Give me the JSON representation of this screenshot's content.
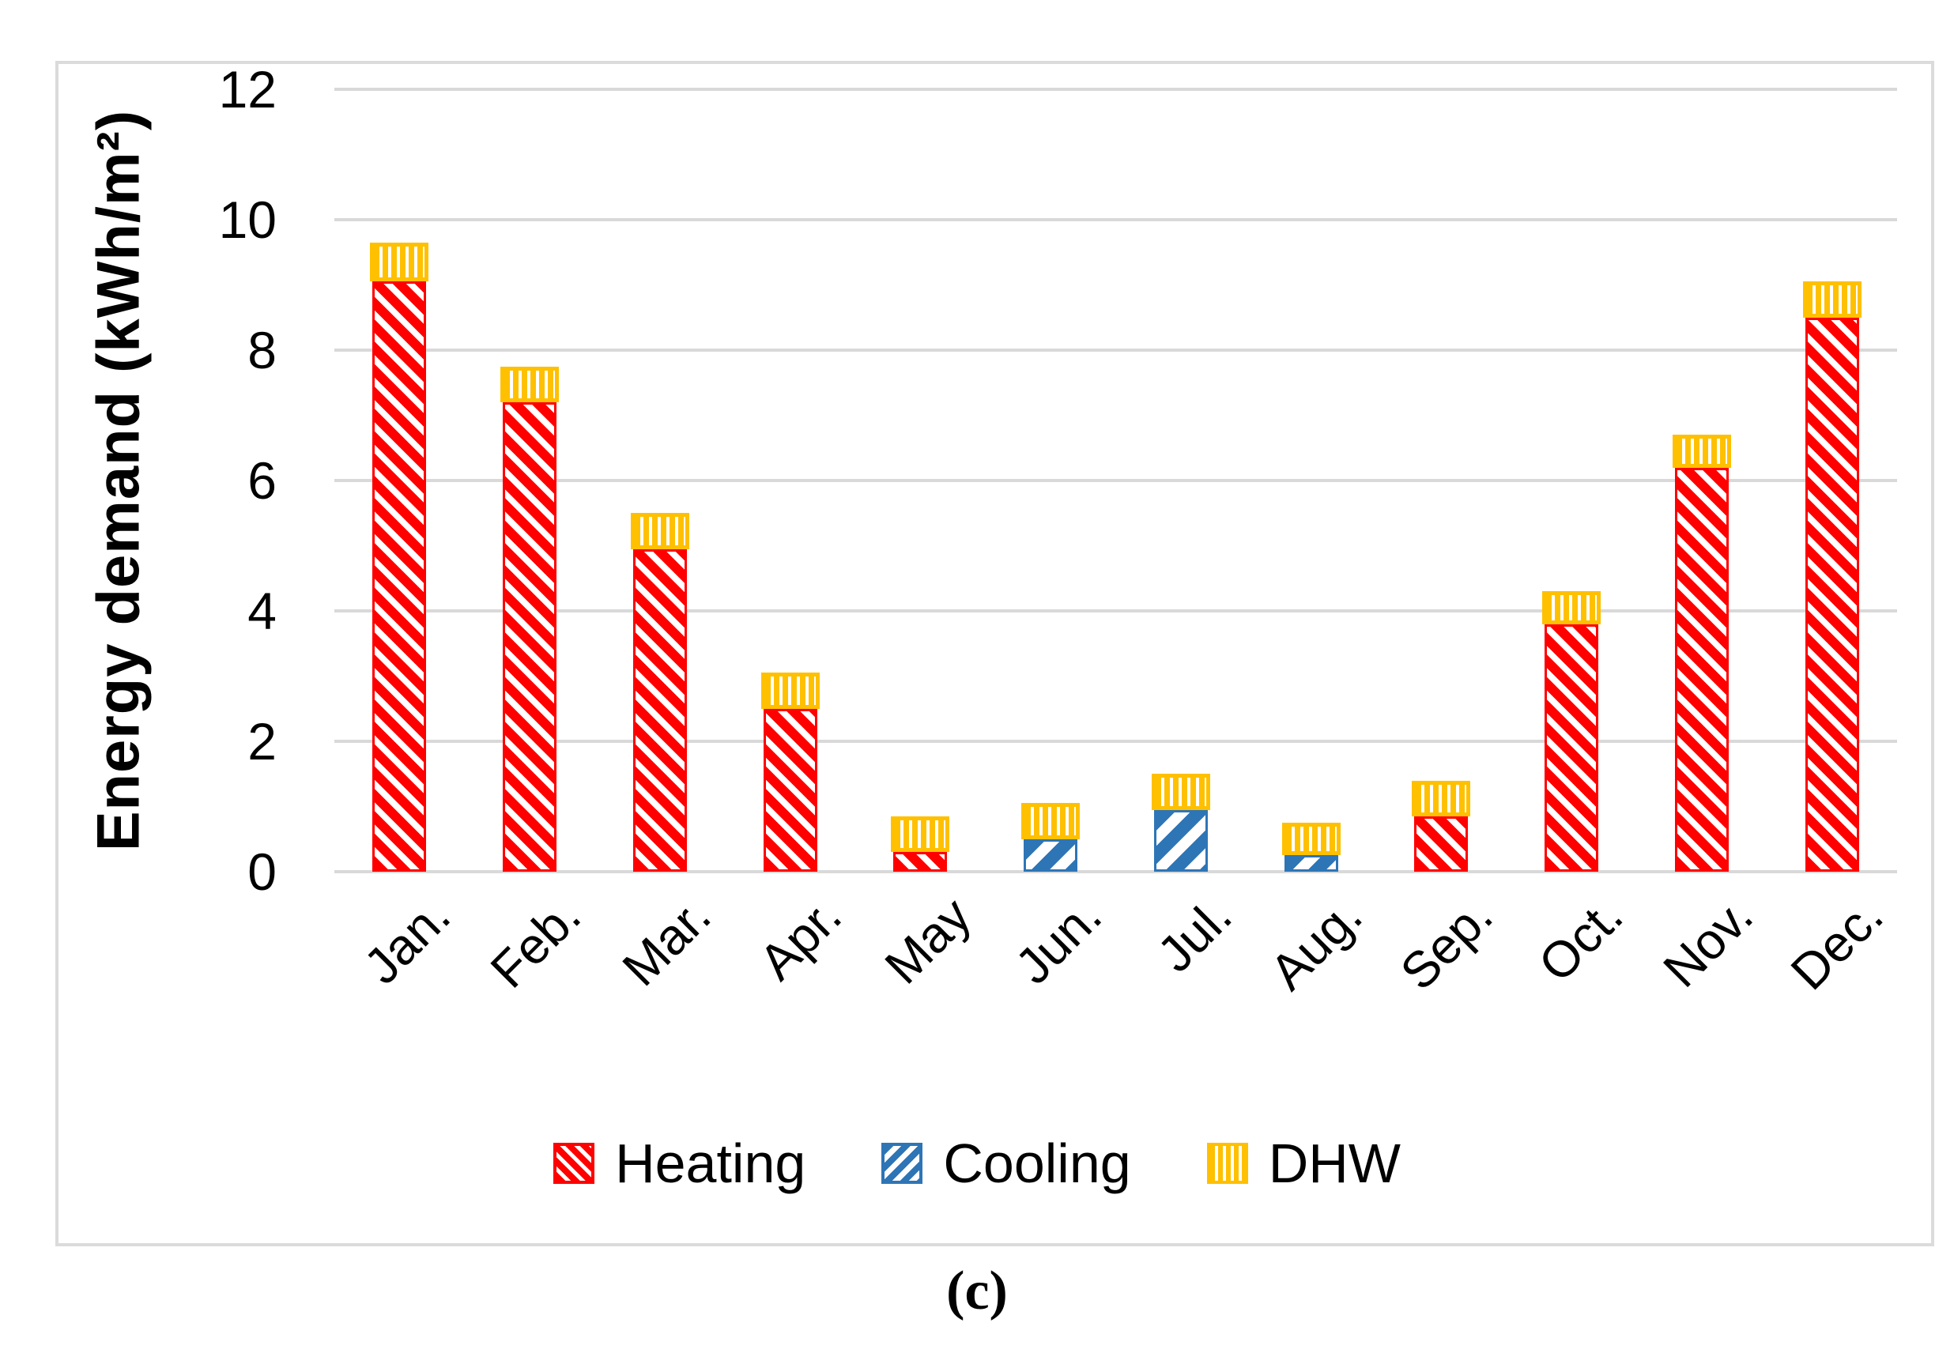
{
  "figure": {
    "caption": "(c)"
  },
  "chart_data": {
    "type": "bar",
    "stacked": true,
    "title": "",
    "xlabel": "",
    "ylabel": "Energy demand (kWh/m²)",
    "ylim": [
      0,
      12
    ],
    "yticks": [
      0,
      2,
      4,
      6,
      8,
      10,
      12
    ],
    "grid": true,
    "legend_position": "bottom",
    "categories": [
      "Jan.",
      "Feb.",
      "Mar.",
      "Apr.",
      "May",
      "Jun.",
      "Jul.",
      "Aug.",
      "Sep.",
      "Oct.",
      "Nov.",
      "Dec."
    ],
    "series": [
      {
        "name": "Heating",
        "color": "#FF0000",
        "hatch": "diagonal-down",
        "values": [
          9.05,
          7.2,
          4.95,
          2.5,
          0.3,
          0,
          0,
          0,
          0.85,
          3.8,
          6.2,
          8.5
        ]
      },
      {
        "name": "Cooling",
        "color": "#2E75B6",
        "hatch": "diagonal-up",
        "values": [
          0,
          0,
          0,
          0,
          0,
          0.5,
          0.95,
          0.25,
          0,
          0,
          0,
          0
        ]
      },
      {
        "name": "DHW",
        "color": "#FFC000",
        "hatch": "vertical",
        "values": [
          0.6,
          0.55,
          0.55,
          0.55,
          0.55,
          0.55,
          0.55,
          0.5,
          0.55,
          0.5,
          0.5,
          0.55
        ]
      }
    ],
    "colors": {
      "gridline": "#D9D9D9",
      "figure_border": "#DBDBDB",
      "text": "#000000"
    }
  }
}
